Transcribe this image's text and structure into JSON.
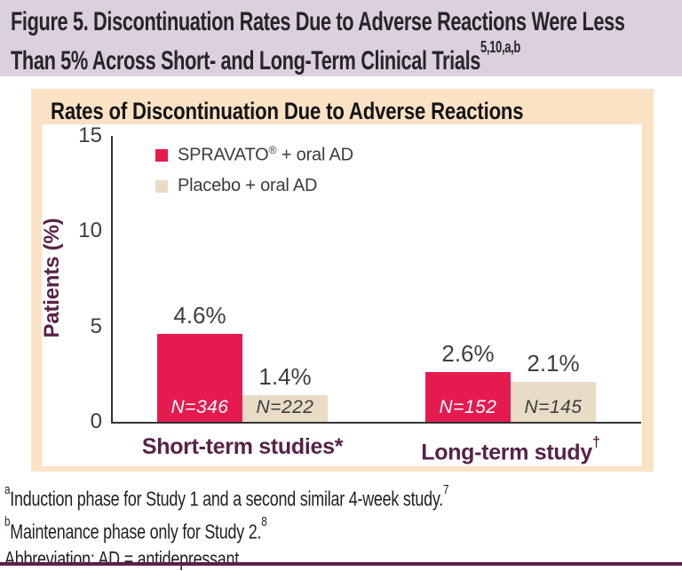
{
  "figure_title": {
    "line1": "Figure 5. Discontinuation Rates Due to Adverse Reactions Were Less",
    "line2": "Than 5% Across Short- and Long-Term Clinical Trials",
    "superscript": "5,10,a,b"
  },
  "panel_header": "Rates of Discontinuation Due to Adverse Reactions",
  "chart_data": {
    "type": "bar",
    "title": "Rates of Discontinuation Due to Adverse Reactions",
    "xlabel": "",
    "ylabel": "Patients (%)",
    "ylim": [
      0,
      15
    ],
    "yticks": [
      0,
      5,
      10,
      15
    ],
    "grid": false,
    "legend_position": "top-left-inside",
    "categories": [
      {
        "label": "Short-term studies*",
        "sup": ""
      },
      {
        "label": "Long-term study",
        "sup": "†"
      }
    ],
    "series": [
      {
        "name": "SPRAVATO® + oral AD",
        "color": "#e51a4f",
        "values": [
          4.6,
          2.6
        ],
        "value_labels": [
          "4.6%",
          "2.6%"
        ],
        "n_labels": [
          "N=346",
          "N=152"
        ],
        "n_label_color": "#ffffff"
      },
      {
        "name": "Placebo + oral AD",
        "color": "#e9dcc6",
        "values": [
          1.4,
          2.1
        ],
        "value_labels": [
          "1.4%",
          "2.1%"
        ],
        "n_labels": [
          "N=222",
          "N=145"
        ],
        "n_label_color": "#3d3d3d"
      }
    ]
  },
  "footnotes": [
    {
      "pre_sup": "a",
      "text": "Induction phase for Study 1 and a second similar 4-week study.",
      "post_sup": "7"
    },
    {
      "pre_sup": "b",
      "text": "Maintenance phase only for Study 2.",
      "post_sup": "8"
    },
    {
      "pre_sup": "",
      "text": "Abbreviation: AD = antidepressant.",
      "post_sup": ""
    }
  ],
  "colors": {
    "title_bar_bg": "#dbd1dd",
    "panel_bg": "#fbe2c4",
    "spravato_bar": "#e51a4f",
    "placebo_bar": "#e9dcc6",
    "accent_purple": "#5b2147",
    "axis": "#333333",
    "text_dark": "#28242a"
  }
}
